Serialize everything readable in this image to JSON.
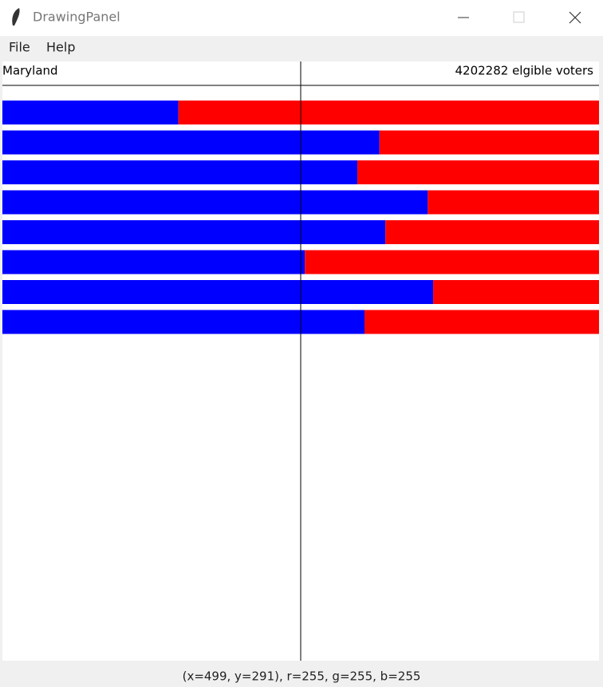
{
  "window": {
    "title": "DrawingPanel",
    "menu": [
      "File",
      "Help"
    ],
    "status": "(x=499, y=291), r=255, g=255, b=255"
  },
  "panel": {
    "state": "Maryland",
    "voters_label": "4202282 elgible voters",
    "blue_share": [
      0.295,
      0.632,
      0.595,
      0.713,
      0.642,
      0.507,
      0.722,
      0.607
    ],
    "xlim": [
      0,
      1
    ],
    "blue_color": "#0000ff",
    "red_color": "#ff0000"
  }
}
